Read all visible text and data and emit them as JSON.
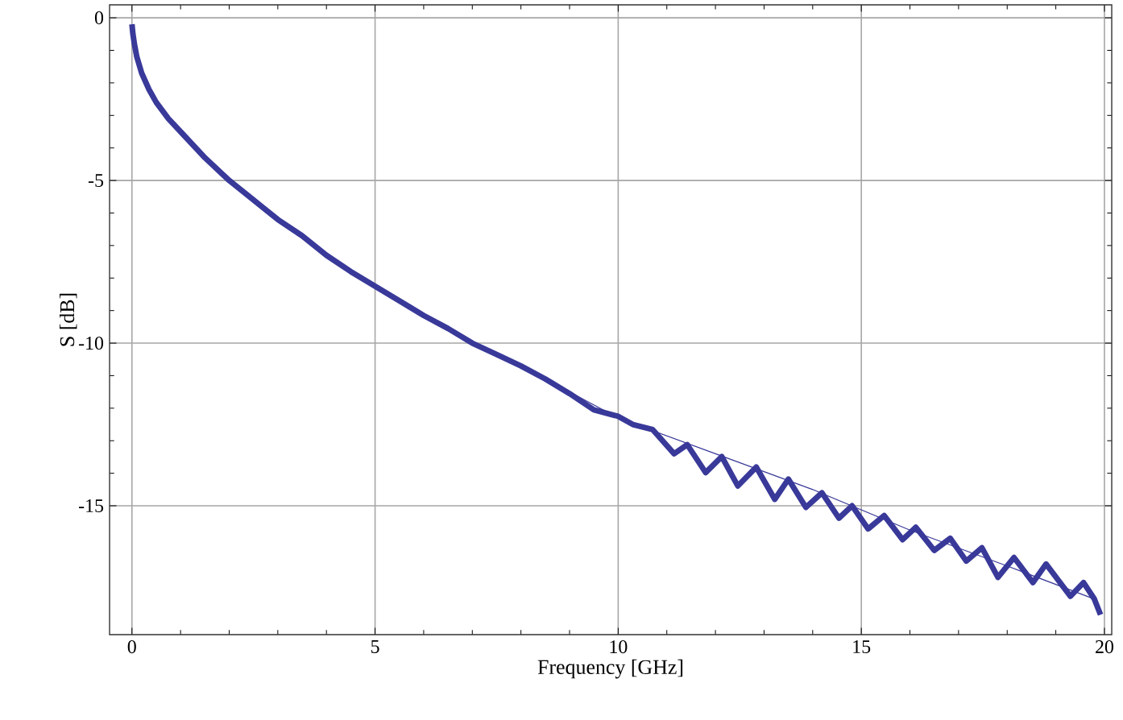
{
  "chart_data": {
    "type": "line",
    "xlabel": "Frequency [GHz]",
    "ylabel": "S [dB]",
    "xlim": [
      -0.46,
      20.15
    ],
    "ylim": [
      -18.96,
      0.4
    ],
    "xticks": [
      0,
      5,
      10,
      15,
      20
    ],
    "yticks": [
      0,
      -5,
      -10,
      -15
    ],
    "grid": true,
    "series": [
      {
        "color": "#39399a",
        "line_style": "solid",
        "x": [
          0,
          0.02,
          0.05,
          0.1,
          0.2,
          0.35,
          0.5,
          0.75,
          1,
          1.5,
          2,
          2.5,
          3,
          3.5,
          4,
          4.5,
          5,
          5.5,
          6,
          6.5,
          7,
          7.5,
          8,
          8.5,
          9,
          9.5,
          10,
          10.3,
          10.71,
          11.15,
          11.42,
          11.8,
          12.13,
          12.46,
          12.84,
          13.22,
          13.5,
          13.86,
          14.19,
          14.54,
          14.81,
          15.14,
          15.47,
          15.85,
          16.12,
          16.5,
          16.83,
          17.16,
          17.48,
          17.81,
          18.14,
          18.53,
          18.8,
          19.3,
          19.57,
          19.79,
          19.92
        ],
        "values": [
          -0.2,
          -0.5,
          -0.8,
          -1.2,
          -1.7,
          -2.2,
          -2.6,
          -3.1,
          -3.5,
          -4.3,
          -5.0,
          -5.6,
          -6.2,
          -6.7,
          -7.3,
          -7.8,
          -8.25,
          -8.7,
          -9.15,
          -9.55,
          -10.0,
          -10.35,
          -10.7,
          -11.1,
          -11.55,
          -12.05,
          -12.25,
          -12.5,
          -12.66,
          -13.4,
          -13.12,
          -13.98,
          -13.49,
          -14.39,
          -13.81,
          -14.8,
          -14.18,
          -15.05,
          -14.6,
          -15.38,
          -15.0,
          -15.71,
          -15.3,
          -16.04,
          -15.66,
          -16.37,
          -16.0,
          -16.7,
          -16.29,
          -17.2,
          -16.59,
          -17.36,
          -16.79,
          -17.78,
          -17.36,
          -17.86,
          -18.35
        ]
      },
      {
        "color": "#39399a",
        "line_style": "solid",
        "x": [
          8,
          10,
          12,
          14,
          16,
          18,
          19.85
        ],
        "values": [
          -10.7,
          -12.3,
          -13.4,
          -14.5,
          -15.75,
          -16.85,
          -17.9
        ]
      }
    ]
  }
}
